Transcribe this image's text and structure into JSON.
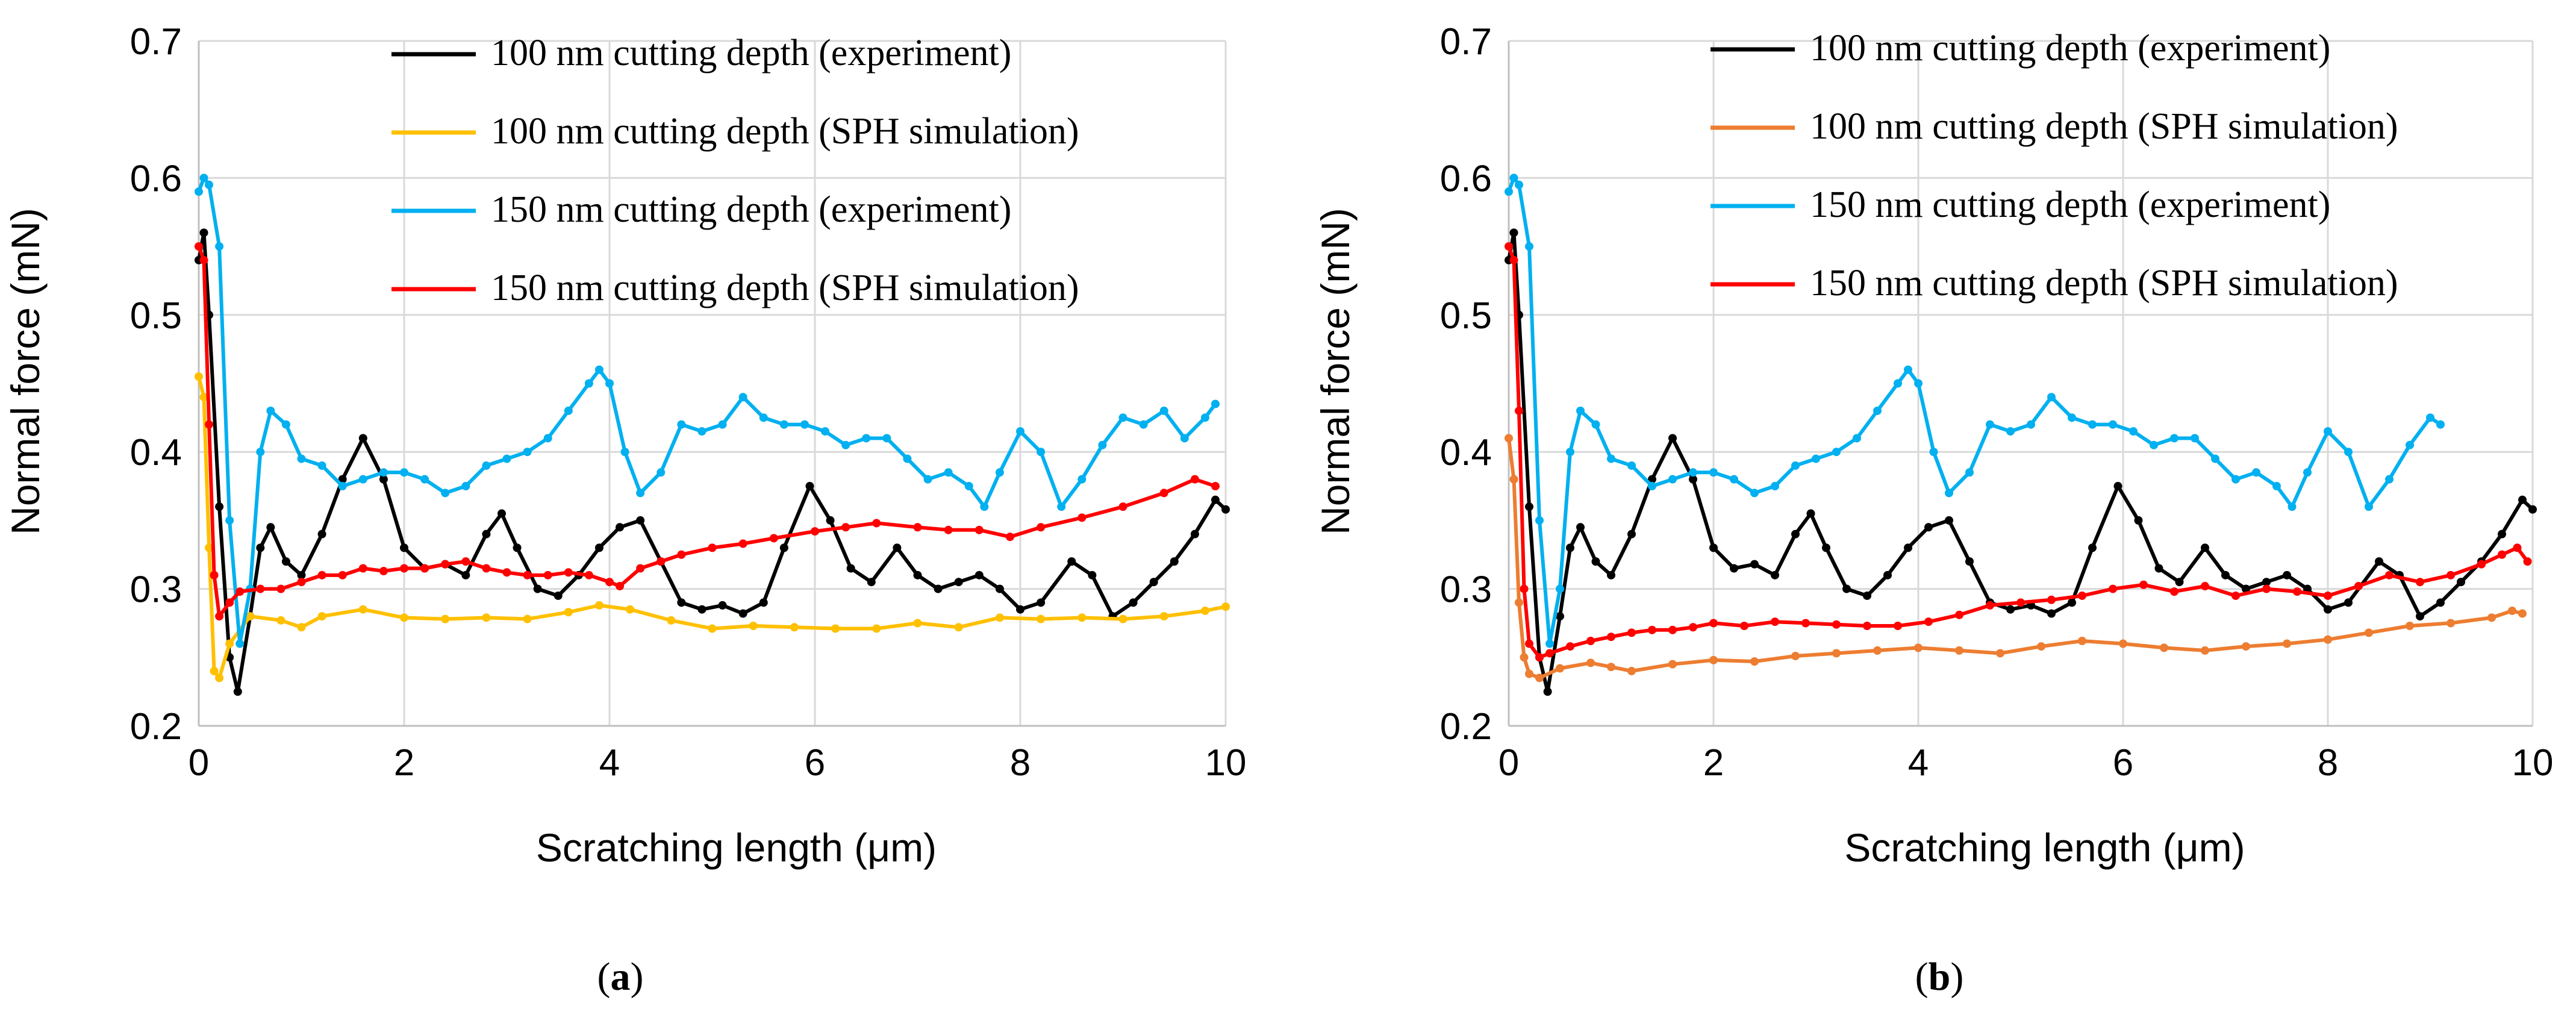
{
  "chart_data": [
    {
      "type": "line",
      "panel": "a",
      "caption": "(a)",
      "caption_open": "(",
      "caption_letter": "a",
      "caption_close": ")",
      "title": "",
      "xlabel": "Scratching length (μm)",
      "ylabel": "Normal force (mN)",
      "xlim": [
        0,
        10
      ],
      "ylim": [
        0.2,
        0.7
      ],
      "xticks": [
        "0",
        "2",
        "4",
        "6",
        "8",
        "10"
      ],
      "yticks": [
        "0.2",
        "0.3",
        "0.4",
        "0.5",
        "0.6",
        "0.7"
      ],
      "grid": true,
      "legend": "top-right",
      "series": [
        {
          "name": "100 nm cutting depth (experiment)",
          "color": "#000000",
          "x": [
            0,
            0.05,
            0.1,
            0.2,
            0.3,
            0.38,
            0.5,
            0.6,
            0.7,
            0.85,
            1.0,
            1.2,
            1.4,
            1.6,
            1.8,
            2.0,
            2.2,
            2.4,
            2.6,
            2.8,
            2.95,
            3.1,
            3.3,
            3.5,
            3.7,
            3.9,
            4.1,
            4.3,
            4.5,
            4.7,
            4.9,
            5.1,
            5.3,
            5.5,
            5.7,
            5.95,
            6.15,
            6.35,
            6.55,
            6.8,
            7.0,
            7.2,
            7.4,
            7.6,
            7.8,
            8.0,
            8.2,
            8.5,
            8.7,
            8.9,
            9.1,
            9.3,
            9.5,
            9.7,
            9.9,
            10.0
          ],
          "values": [
            0.54,
            0.56,
            0.5,
            0.36,
            0.25,
            0.225,
            0.28,
            0.33,
            0.345,
            0.32,
            0.31,
            0.34,
            0.38,
            0.41,
            0.38,
            0.33,
            0.315,
            0.318,
            0.31,
            0.34,
            0.355,
            0.33,
            0.3,
            0.295,
            0.31,
            0.33,
            0.345,
            0.35,
            0.32,
            0.29,
            0.285,
            0.288,
            0.282,
            0.29,
            0.33,
            0.375,
            0.35,
            0.315,
            0.305,
            0.33,
            0.31,
            0.3,
            0.305,
            0.31,
            0.3,
            0.285,
            0.29,
            0.32,
            0.31,
            0.28,
            0.29,
            0.305,
            0.32,
            0.34,
            0.365,
            0.358
          ]
        },
        {
          "name": "100 nm cutting depth (SPH simulation)",
          "color": "#FFC000",
          "x": [
            0,
            0.05,
            0.1,
            0.15,
            0.2,
            0.3,
            0.5,
            0.8,
            1.0,
            1.2,
            1.6,
            2.0,
            2.4,
            2.8,
            3.2,
            3.6,
            3.9,
            4.2,
            4.6,
            5.0,
            5.4,
            5.8,
            6.2,
            6.6,
            7.0,
            7.4,
            7.8,
            8.2,
            8.6,
            9.0,
            9.4,
            9.8,
            10.0
          ],
          "values": [
            0.455,
            0.44,
            0.33,
            0.24,
            0.235,
            0.26,
            0.28,
            0.277,
            0.272,
            0.28,
            0.285,
            0.279,
            0.278,
            0.279,
            0.278,
            0.283,
            0.288,
            0.285,
            0.277,
            0.271,
            0.273,
            0.272,
            0.271,
            0.271,
            0.275,
            0.272,
            0.279,
            0.278,
            0.279,
            0.278,
            0.28,
            0.284,
            0.287
          ]
        },
        {
          "name": "150 nm cutting depth (experiment)",
          "color": "#00B0F0",
          "x": [
            0,
            0.05,
            0.1,
            0.2,
            0.3,
            0.4,
            0.5,
            0.6,
            0.7,
            0.85,
            1.0,
            1.2,
            1.4,
            1.6,
            1.8,
            2.0,
            2.2,
            2.4,
            2.6,
            2.8,
            3.0,
            3.2,
            3.4,
            3.6,
            3.8,
            3.9,
            4.0,
            4.15,
            4.3,
            4.5,
            4.7,
            4.9,
            5.1,
            5.3,
            5.5,
            5.7,
            5.9,
            6.1,
            6.3,
            6.5,
            6.7,
            6.9,
            7.1,
            7.3,
            7.5,
            7.65,
            7.8,
            8.0,
            8.2,
            8.4,
            8.6,
            8.8,
            9.0,
            9.2,
            9.4,
            9.6,
            9.8,
            9.9
          ],
          "values": [
            0.59,
            0.6,
            0.595,
            0.55,
            0.35,
            0.26,
            0.3,
            0.4,
            0.43,
            0.42,
            0.395,
            0.39,
            0.375,
            0.38,
            0.385,
            0.385,
            0.38,
            0.37,
            0.375,
            0.39,
            0.395,
            0.4,
            0.41,
            0.43,
            0.45,
            0.46,
            0.45,
            0.4,
            0.37,
            0.385,
            0.42,
            0.415,
            0.42,
            0.44,
            0.425,
            0.42,
            0.42,
            0.415,
            0.405,
            0.41,
            0.41,
            0.395,
            0.38,
            0.385,
            0.375,
            0.36,
            0.385,
            0.415,
            0.4,
            0.36,
            0.38,
            0.405,
            0.425,
            0.42,
            0.43,
            0.41,
            0.425,
            0.435
          ]
        },
        {
          "name": "150 nm cutting depth (SPH simulation)",
          "color": "#FF0000",
          "x": [
            0,
            0.05,
            0.1,
            0.15,
            0.2,
            0.3,
            0.4,
            0.6,
            0.8,
            1.0,
            1.2,
            1.4,
            1.6,
            1.8,
            2.0,
            2.2,
            2.4,
            2.6,
            2.8,
            3.0,
            3.2,
            3.4,
            3.6,
            3.8,
            4.0,
            4.1,
            4.3,
            4.5,
            4.7,
            5.0,
            5.3,
            5.6,
            6.0,
            6.3,
            6.6,
            7.0,
            7.3,
            7.6,
            7.9,
            8.2,
            8.6,
            9.0,
            9.4,
            9.7,
            9.9
          ],
          "values": [
            0.55,
            0.54,
            0.42,
            0.31,
            0.28,
            0.29,
            0.298,
            0.3,
            0.3,
            0.305,
            0.31,
            0.31,
            0.315,
            0.313,
            0.315,
            0.315,
            0.318,
            0.32,
            0.315,
            0.312,
            0.31,
            0.31,
            0.312,
            0.31,
            0.305,
            0.302,
            0.315,
            0.32,
            0.325,
            0.33,
            0.333,
            0.337,
            0.342,
            0.345,
            0.348,
            0.345,
            0.343,
            0.343,
            0.338,
            0.345,
            0.352,
            0.36,
            0.37,
            0.38,
            0.375
          ]
        }
      ]
    },
    {
      "type": "line",
      "panel": "b",
      "caption": "(b)",
      "caption_open": "(",
      "caption_letter": "b",
      "caption_close": ")",
      "title": "",
      "xlabel": "Scratching length (μm)",
      "ylabel": "Normal force (mN)",
      "xlim": [
        0,
        10
      ],
      "ylim": [
        0.2,
        0.7
      ],
      "xticks": [
        "0",
        "2",
        "4",
        "6",
        "8",
        "10"
      ],
      "yticks": [
        "0.2",
        "0.3",
        "0.4",
        "0.5",
        "0.6",
        "0.7"
      ],
      "grid": true,
      "legend": "top-right",
      "series": [
        {
          "name": "100 nm cutting depth (experiment)",
          "color": "#000000",
          "x": [
            0,
            0.05,
            0.1,
            0.2,
            0.3,
            0.38,
            0.5,
            0.6,
            0.7,
            0.85,
            1.0,
            1.2,
            1.4,
            1.6,
            1.8,
            2.0,
            2.2,
            2.4,
            2.6,
            2.8,
            2.95,
            3.1,
            3.3,
            3.5,
            3.7,
            3.9,
            4.1,
            4.3,
            4.5,
            4.7,
            4.9,
            5.1,
            5.3,
            5.5,
            5.7,
            5.95,
            6.15,
            6.35,
            6.55,
            6.8,
            7.0,
            7.2,
            7.4,
            7.6,
            7.8,
            8.0,
            8.2,
            8.5,
            8.7,
            8.9,
            9.1,
            9.3,
            9.5,
            9.7,
            9.9,
            10.0
          ],
          "values": [
            0.54,
            0.56,
            0.5,
            0.36,
            0.25,
            0.225,
            0.28,
            0.33,
            0.345,
            0.32,
            0.31,
            0.34,
            0.38,
            0.41,
            0.38,
            0.33,
            0.315,
            0.318,
            0.31,
            0.34,
            0.355,
            0.33,
            0.3,
            0.295,
            0.31,
            0.33,
            0.345,
            0.35,
            0.32,
            0.29,
            0.285,
            0.288,
            0.282,
            0.29,
            0.33,
            0.375,
            0.35,
            0.315,
            0.305,
            0.33,
            0.31,
            0.3,
            0.305,
            0.31,
            0.3,
            0.285,
            0.29,
            0.32,
            0.31,
            0.28,
            0.29,
            0.305,
            0.32,
            0.34,
            0.365,
            0.358
          ]
        },
        {
          "name": "100 nm cutting depth (SPH simulation)",
          "color": "#ED7D31",
          "x": [
            0,
            0.05,
            0.1,
            0.15,
            0.2,
            0.3,
            0.5,
            0.8,
            1.0,
            1.2,
            1.6,
            2.0,
            2.4,
            2.8,
            3.2,
            3.6,
            4.0,
            4.4,
            4.8,
            5.2,
            5.6,
            6.0,
            6.4,
            6.8,
            7.2,
            7.6,
            8.0,
            8.4,
            8.8,
            9.2,
            9.6,
            9.8,
            9.9
          ],
          "values": [
            0.41,
            0.38,
            0.29,
            0.25,
            0.238,
            0.235,
            0.242,
            0.246,
            0.243,
            0.24,
            0.245,
            0.248,
            0.247,
            0.251,
            0.253,
            0.255,
            0.257,
            0.255,
            0.253,
            0.258,
            0.262,
            0.26,
            0.257,
            0.255,
            0.258,
            0.26,
            0.263,
            0.268,
            0.273,
            0.275,
            0.279,
            0.284,
            0.282
          ]
        },
        {
          "name": "150 nm cutting depth (experiment)",
          "color": "#00B0F0",
          "x": [
            0,
            0.05,
            0.1,
            0.2,
            0.3,
            0.4,
            0.5,
            0.6,
            0.7,
            0.85,
            1.0,
            1.2,
            1.4,
            1.6,
            1.8,
            2.0,
            2.2,
            2.4,
            2.6,
            2.8,
            3.0,
            3.2,
            3.4,
            3.6,
            3.8,
            3.9,
            4.0,
            4.15,
            4.3,
            4.5,
            4.7,
            4.9,
            5.1,
            5.3,
            5.5,
            5.7,
            5.9,
            6.1,
            6.3,
            6.5,
            6.7,
            6.9,
            7.1,
            7.3,
            7.5,
            7.65,
            7.8,
            8.0,
            8.2,
            8.4,
            8.6,
            8.8,
            9.0,
            9.1
          ],
          "values": [
            0.59,
            0.6,
            0.595,
            0.55,
            0.35,
            0.26,
            0.3,
            0.4,
            0.43,
            0.42,
            0.395,
            0.39,
            0.375,
            0.38,
            0.385,
            0.385,
            0.38,
            0.37,
            0.375,
            0.39,
            0.395,
            0.4,
            0.41,
            0.43,
            0.45,
            0.46,
            0.45,
            0.4,
            0.37,
            0.385,
            0.42,
            0.415,
            0.42,
            0.44,
            0.425,
            0.42,
            0.42,
            0.415,
            0.405,
            0.41,
            0.41,
            0.395,
            0.38,
            0.385,
            0.375,
            0.36,
            0.385,
            0.415,
            0.4,
            0.36,
            0.38,
            0.405,
            0.425,
            0.42
          ]
        },
        {
          "name": "150 nm cutting depth (SPH simulation)",
          "color": "#FF0000",
          "x": [
            0,
            0.05,
            0.1,
            0.15,
            0.2,
            0.3,
            0.4,
            0.6,
            0.8,
            1.0,
            1.2,
            1.4,
            1.6,
            1.8,
            2.0,
            2.3,
            2.6,
            2.9,
            3.2,
            3.5,
            3.8,
            4.1,
            4.4,
            4.7,
            5.0,
            5.3,
            5.6,
            5.9,
            6.2,
            6.5,
            6.8,
            7.1,
            7.4,
            7.7,
            8.0,
            8.3,
            8.6,
            8.9,
            9.2,
            9.5,
            9.7,
            9.85,
            9.95
          ],
          "values": [
            0.55,
            0.54,
            0.43,
            0.3,
            0.26,
            0.25,
            0.253,
            0.258,
            0.262,
            0.265,
            0.268,
            0.27,
            0.27,
            0.272,
            0.275,
            0.273,
            0.276,
            0.275,
            0.274,
            0.273,
            0.273,
            0.276,
            0.281,
            0.288,
            0.29,
            0.292,
            0.295,
            0.3,
            0.303,
            0.298,
            0.302,
            0.295,
            0.3,
            0.298,
            0.295,
            0.302,
            0.31,
            0.305,
            0.31,
            0.318,
            0.325,
            0.33,
            0.32
          ]
        }
      ]
    }
  ]
}
